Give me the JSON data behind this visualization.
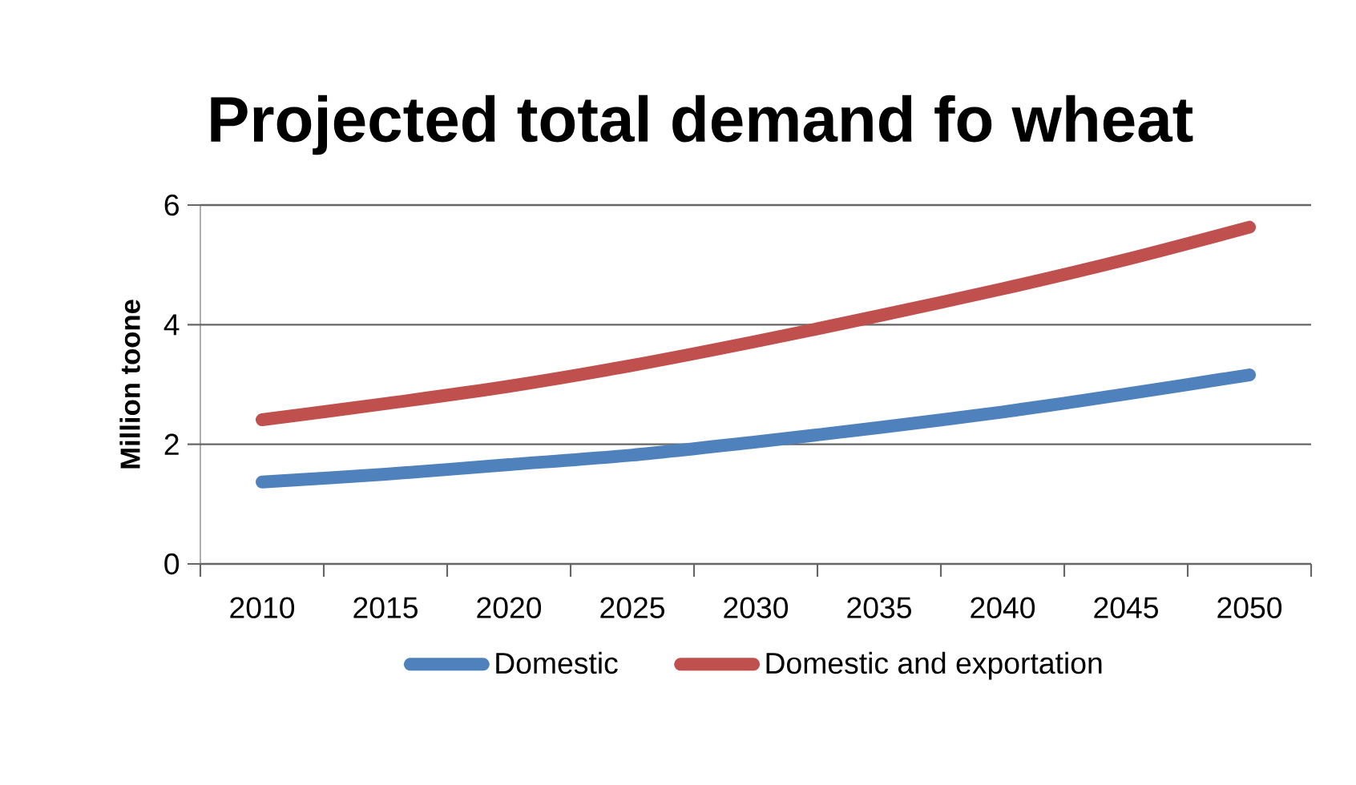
{
  "chart_data": {
    "type": "line",
    "title": "Projected total demand fo wheat",
    "ylabel": "Million toone",
    "categories": [
      "2010",
      "2015",
      "2020",
      "2025",
      "2030",
      "2035",
      "2040",
      "2045",
      "2050"
    ],
    "series": [
      {
        "name": "Domestic",
        "color": "#4f81bd",
        "values": [
          1.37,
          1.5,
          1.66,
          1.82,
          2.04,
          2.28,
          2.54,
          2.84,
          3.16
        ]
      },
      {
        "name": "Domestic and exportation",
        "color": "#c0504d",
        "values": [
          2.41,
          2.68,
          2.97,
          3.32,
          3.72,
          4.15,
          4.6,
          5.09,
          5.63
        ]
      }
    ],
    "ylim": [
      0,
      6
    ],
    "yticks": [
      0,
      2,
      4,
      6
    ],
    "grid": "y",
    "legend": "bottom",
    "marker": "none",
    "line_style": "solid"
  }
}
